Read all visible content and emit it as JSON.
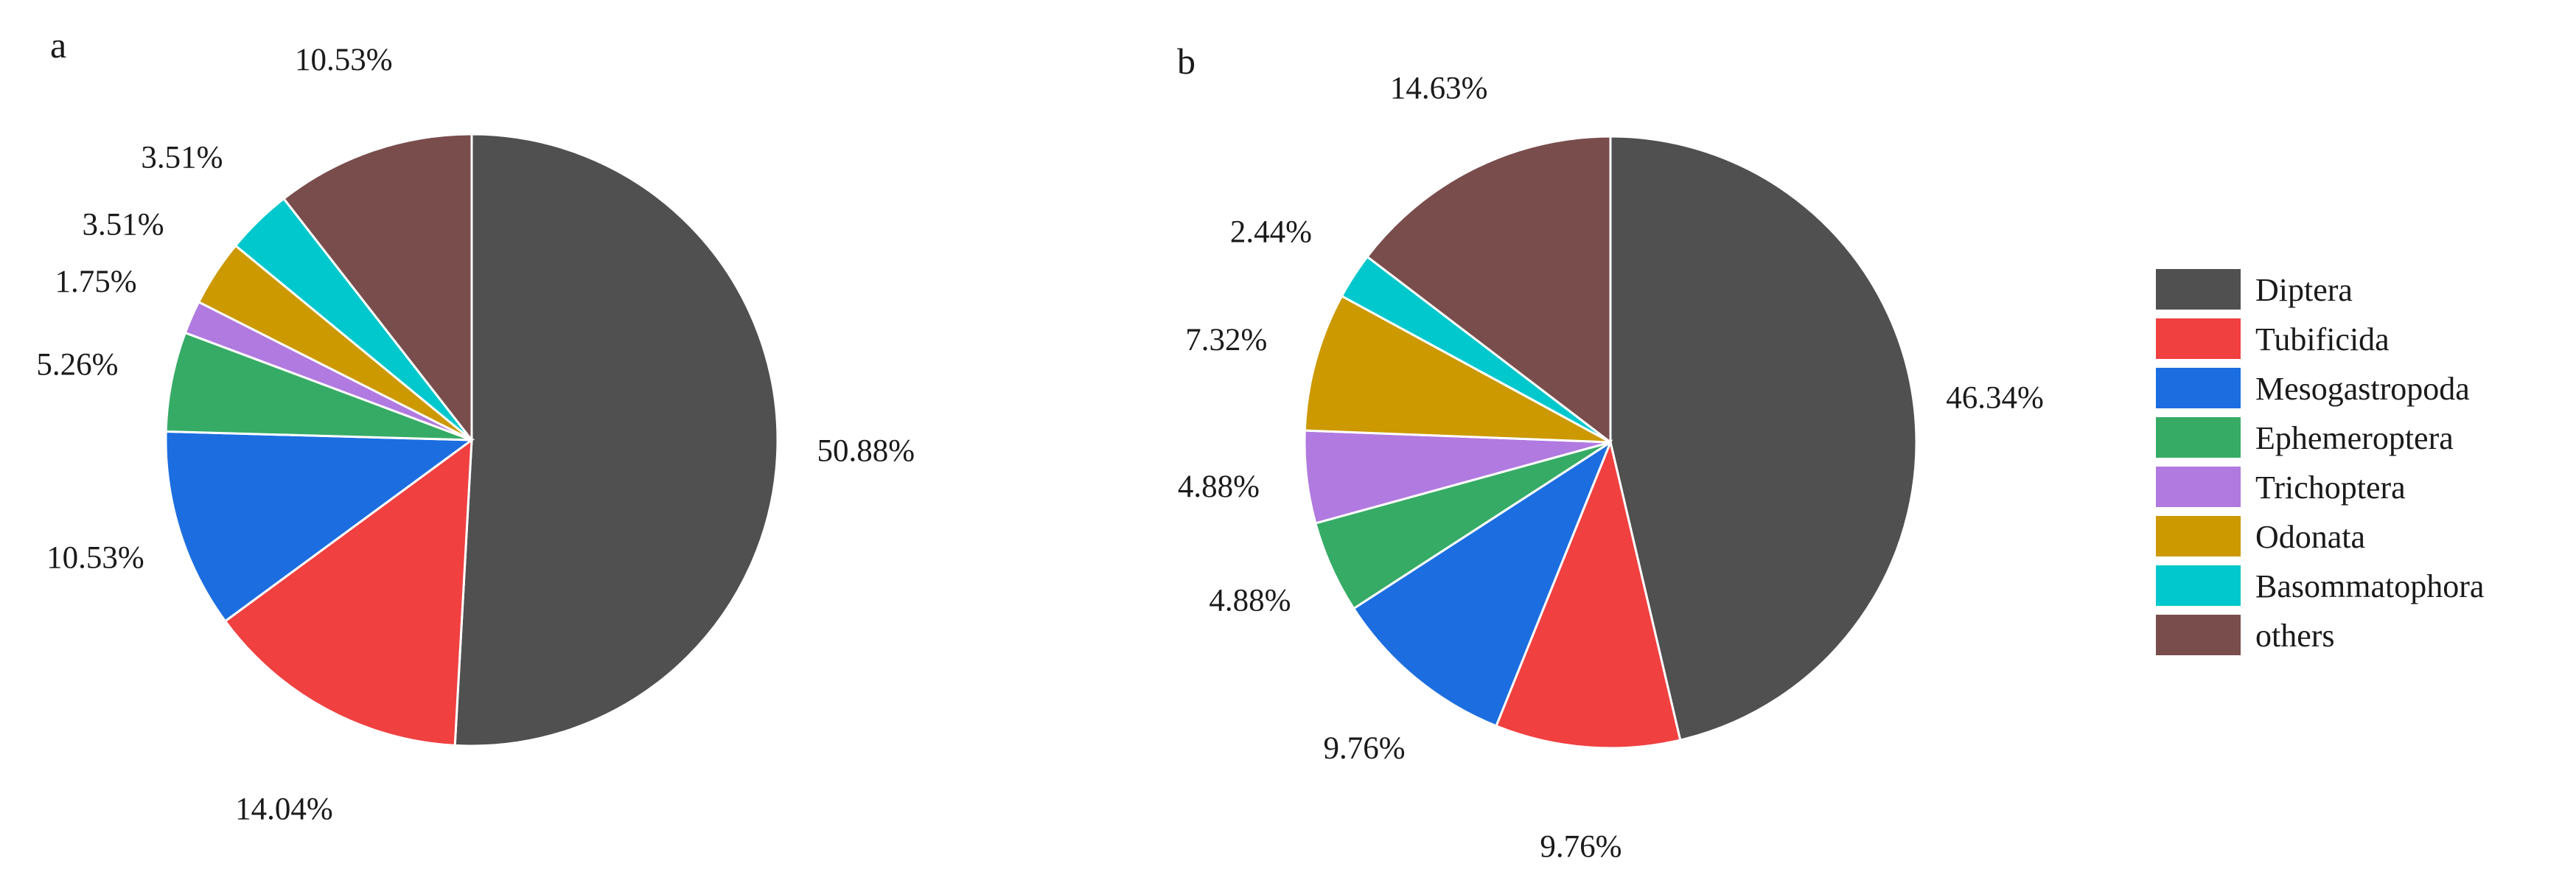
{
  "chart_data": [
    {
      "type": "pie",
      "panel_label": "a",
      "categories": [
        "Diptera",
        "Tubificida",
        "Mesogastropoda",
        "Ephemeroptera",
        "Trichoptera",
        "Odonata",
        "Basommatophora",
        "others"
      ],
      "values": [
        50.88,
        14.04,
        10.53,
        5.26,
        1.75,
        3.51,
        3.51,
        10.53
      ],
      "labels": [
        "50.88%",
        "14.04%",
        "10.53%",
        "5.26%",
        "1.75%",
        "3.51%",
        "3.51%",
        "10.53%"
      ],
      "start_angle_deg": 0,
      "direction": "clockwise"
    },
    {
      "type": "pie",
      "panel_label": "b",
      "categories": [
        "Diptera",
        "Tubificida",
        "Mesogastropoda",
        "Ephemeroptera",
        "Trichoptera",
        "Odonata",
        "Basommatophora",
        "others"
      ],
      "values": [
        46.34,
        9.76,
        9.76,
        4.88,
        4.88,
        7.32,
        2.44,
        14.63
      ],
      "labels": [
        "46.34%",
        "9.76%",
        "9.76%",
        "4.88%",
        "4.88%",
        "7.32%",
        "2.44%",
        "14.63%"
      ],
      "start_angle_deg": 0,
      "direction": "clockwise"
    }
  ],
  "legend": {
    "placement": "right",
    "items": [
      {
        "label": "Diptera",
        "color": "#505050"
      },
      {
        "label": "Tubificida",
        "color": "#f04040"
      },
      {
        "label": "Mesogastropoda",
        "color": "#1c6ee0"
      },
      {
        "label": "Ephemeroptera",
        "color": "#36ab66"
      },
      {
        "label": "Trichoptera",
        "color": "#b07ae0"
      },
      {
        "label": "Odonata",
        "color": "#cc9900"
      },
      {
        "label": "Basommatophora",
        "color": "#00c8cc"
      },
      {
        "label": "others",
        "color": "#7a4d4d"
      }
    ]
  }
}
